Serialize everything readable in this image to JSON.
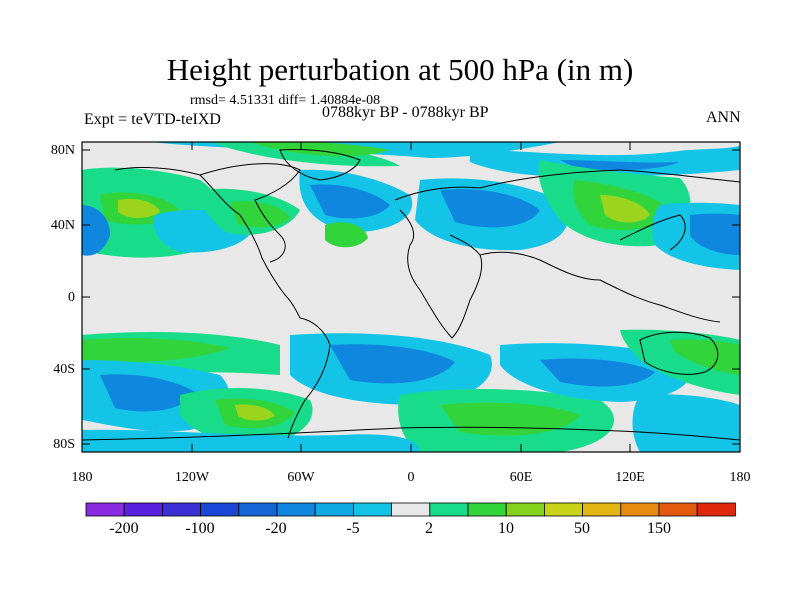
{
  "header": {
    "title": "Height perturbation at 500 hPa (in m)",
    "stats": "rmsd= 4.51331 diff= 1.40884e-08",
    "period": "0788kyr BP - 0788kyr BP",
    "experiment": "Expt = teVTD-teIXD",
    "season": "ANN"
  },
  "axes": {
    "y_ticks": [
      "80N",
      "40N",
      "0",
      "40S",
      "80S"
    ],
    "x_ticks": [
      "180",
      "120W",
      "60W",
      "0",
      "60E",
      "120E",
      "180"
    ]
  },
  "colorbar": {
    "labels": [
      "-200",
      "-100",
      "-20",
      "-5",
      "2",
      "10",
      "50",
      "150"
    ],
    "colors": [
      "#8a2be2",
      "#5b1fe0",
      "#3d2fd6",
      "#1b45d6",
      "#1766d8",
      "#0f87de",
      "#10a9e4",
      "#13c4e6",
      "#e8e8e8",
      "#19dc8a",
      "#31d43a",
      "#84d21e",
      "#c8d317",
      "#e3b713",
      "#e88a10",
      "#e45a0f",
      "#e0290c"
    ]
  },
  "map_colors": {
    "background": "#e8e8e8",
    "light_blue": "#13c4e6",
    "mid_blue": "#0f87de",
    "dark_blue": "#1b5ad6",
    "teal": "#19dc8a",
    "green": "#31d43a",
    "yellow_green": "#9ad41c",
    "coast": "#000000"
  }
}
